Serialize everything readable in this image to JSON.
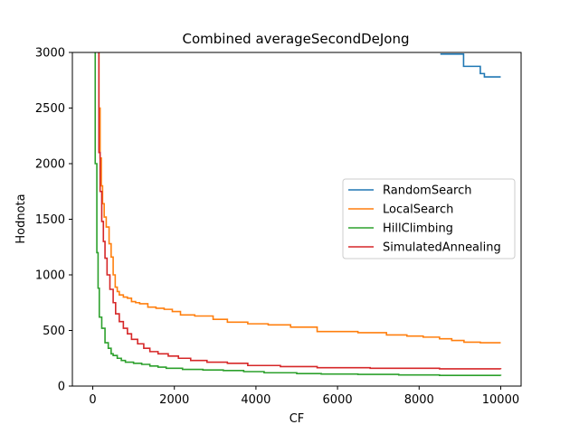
{
  "chart_data": {
    "type": "line",
    "title": "Combined averageSecondDeJong",
    "xlabel": "CF",
    "ylabel": "Hodnota",
    "xlim": [
      -500,
      10500
    ],
    "ylim": [
      0,
      3000
    ],
    "xticks": [
      0,
      2000,
      4000,
      6000,
      8000,
      10000
    ],
    "yticks": [
      0,
      500,
      1000,
      1500,
      2000,
      2500,
      3000
    ],
    "legend_position": "center-right",
    "grid": false,
    "series": [
      {
        "name": "RandomSearch",
        "color": "#1f77b4",
        "step": true,
        "x": [
          8520,
          9080,
          9090,
          9350,
          9500,
          9600,
          10000
        ],
        "y": [
          2985,
          2985,
          2875,
          2875,
          2810,
          2780,
          2780
        ]
      },
      {
        "name": "LocalSearch",
        "color": "#ff7f0e",
        "step": true,
        "x": [
          130,
          150,
          180,
          210,
          240,
          280,
          330,
          400,
          450,
          500,
          550,
          600,
          650,
          750,
          850,
          950,
          1050,
          1150,
          1350,
          1550,
          1750,
          1950,
          2150,
          2500,
          2950,
          3300,
          3800,
          4300,
          4850,
          5500,
          6500,
          7200,
          7700,
          8100,
          8500,
          8800,
          9100,
          9500,
          10000
        ],
        "y": [
          3300,
          2500,
          2050,
          1800,
          1640,
          1520,
          1430,
          1280,
          1160,
          1000,
          890,
          850,
          820,
          800,
          790,
          760,
          750,
          740,
          710,
          700,
          690,
          670,
          640,
          630,
          600,
          575,
          560,
          550,
          530,
          490,
          480,
          460,
          450,
          440,
          425,
          410,
          395,
          390,
          390
        ]
      },
      {
        "name": "HillClimbing",
        "color": "#2ca02c",
        "step": true,
        "x": [
          20,
          60,
          100,
          130,
          160,
          220,
          300,
          380,
          450,
          500,
          600,
          700,
          800,
          1000,
          1200,
          1400,
          1600,
          1800,
          2200,
          2700,
          3200,
          3700,
          4200,
          5000,
          5600,
          6500,
          7500,
          8500,
          10000
        ],
        "y": [
          3300,
          2000,
          1200,
          880,
          620,
          520,
          390,
          340,
          290,
          275,
          250,
          230,
          215,
          205,
          195,
          180,
          170,
          160,
          150,
          145,
          140,
          130,
          120,
          112,
          108,
          105,
          100,
          96,
          93
        ]
      },
      {
        "name": "SimulatedAnnealing",
        "color": "#d62728",
        "step": true,
        "x": [
          100,
          150,
          180,
          220,
          260,
          300,
          350,
          420,
          500,
          560,
          650,
          750,
          850,
          950,
          1100,
          1250,
          1400,
          1600,
          1850,
          2100,
          2400,
          2800,
          3300,
          3800,
          4600,
          5500,
          6800,
          8500,
          10000
        ],
        "y": [
          3300,
          2100,
          1750,
          1480,
          1300,
          1150,
          1000,
          870,
          750,
          650,
          580,
          520,
          470,
          420,
          380,
          340,
          310,
          290,
          270,
          250,
          230,
          215,
          205,
          185,
          175,
          165,
          160,
          155,
          152
        ]
      }
    ]
  }
}
